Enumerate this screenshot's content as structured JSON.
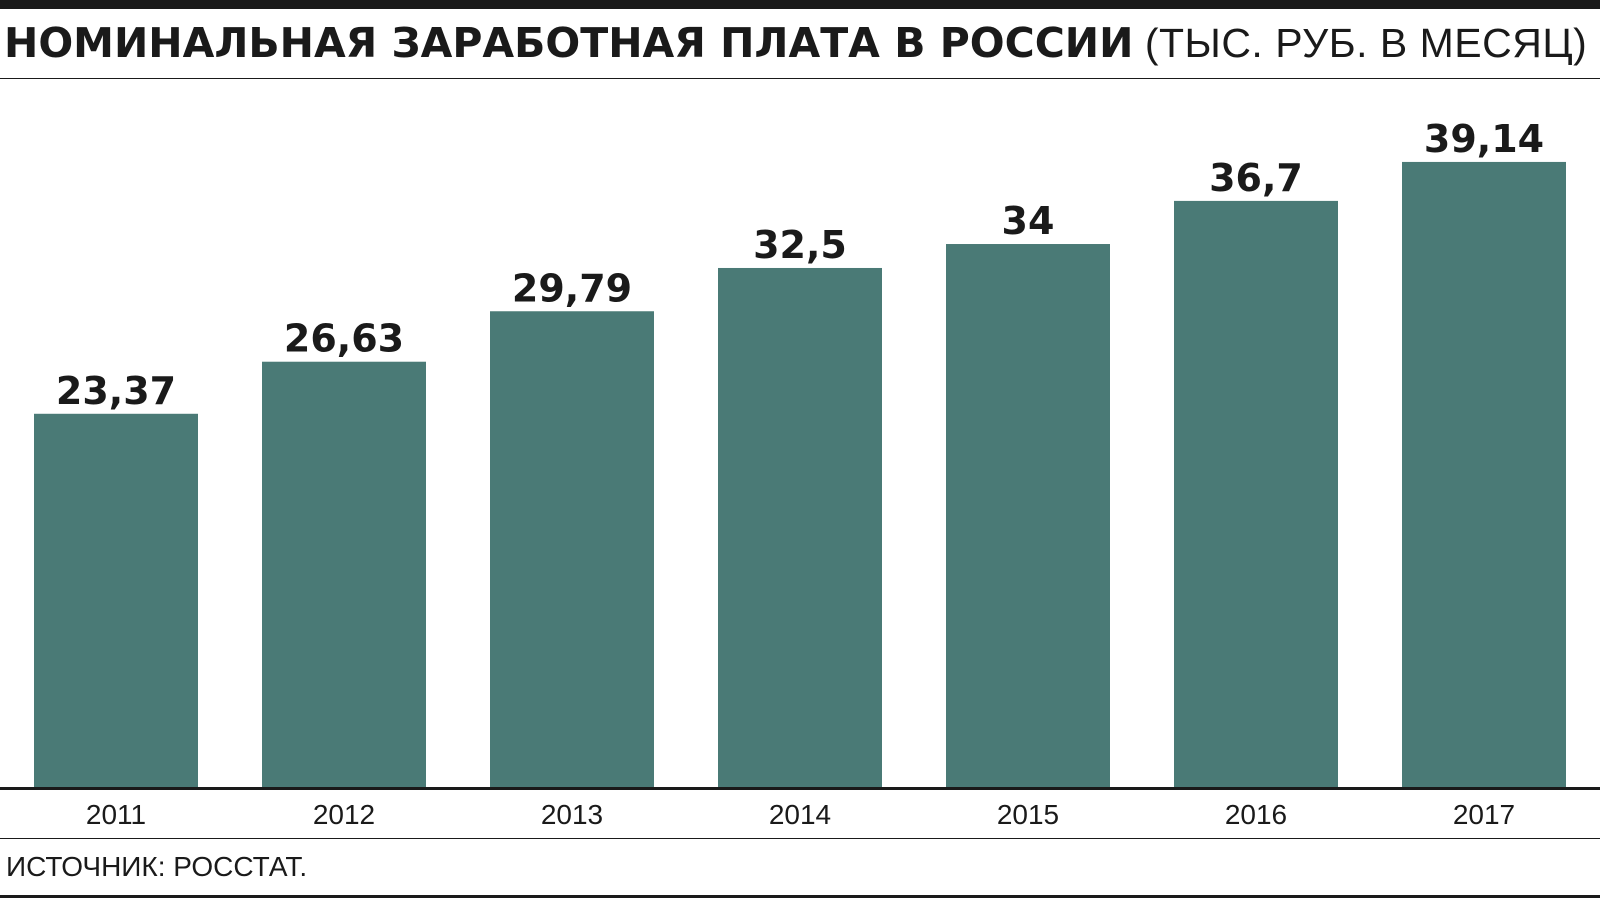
{
  "title": {
    "main": "НОМИНАЛЬНАЯ ЗАРАБОТНАЯ ПЛАТА В РОССИИ",
    "unit": "(ТЫС. РУБ. В МЕСЯЦ)"
  },
  "source": "ИСТОЧНИК: РОССТАТ.",
  "colors": {
    "bar": "#4a7a76",
    "text": "#1a1a1a"
  },
  "chart_data": {
    "type": "bar",
    "title": "НОМИНАЛЬНАЯ ЗАРАБОТНАЯ ПЛАТА В РОССИИ (ТЫС. РУБ. В МЕСЯЦ)",
    "categories": [
      "2011",
      "2012",
      "2013",
      "2014",
      "2015",
      "2016",
      "2017"
    ],
    "values": [
      23.37,
      26.63,
      29.79,
      32.5,
      34,
      36.7,
      39.14
    ],
    "labels": [
      "23,37",
      "26,63",
      "29,79",
      "32,5",
      "34",
      "36,7",
      "39,14"
    ],
    "ylim": [
      0,
      42
    ],
    "grid": false,
    "legend": "none",
    "xlabel": "",
    "ylabel": ""
  }
}
